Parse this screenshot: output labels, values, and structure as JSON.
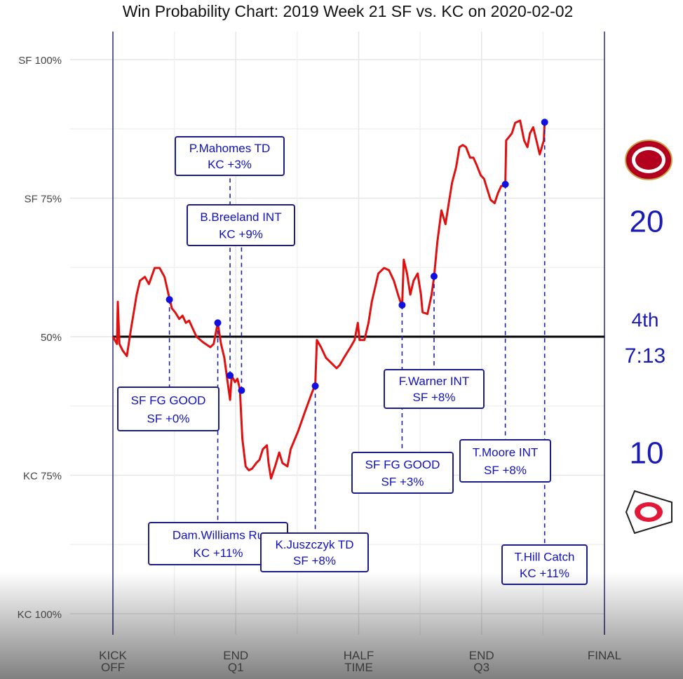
{
  "chart_data": {
    "type": "line",
    "title": "Win Probability Chart: 2019 Week 21 SF vs. KC on 2020-02-02",
    "xlim": [
      0,
      60
    ],
    "xticks": [
      {
        "value": 0,
        "label": "KICK OFF"
      },
      {
        "value": 15,
        "label": "END Q1"
      },
      {
        "value": 30,
        "label": "HALF TIME"
      },
      {
        "value": 45,
        "label": "END Q3"
      },
      {
        "value": 60,
        "label": "FINAL"
      }
    ],
    "ylim": [
      0,
      100
    ],
    "yticks": [
      {
        "value": 100,
        "label": "SF 100%"
      },
      {
        "value": 75,
        "label": "SF 75%"
      },
      {
        "value": 50,
        "label": "50%"
      },
      {
        "value": 25,
        "label": "KC 75%"
      },
      {
        "value": 0,
        "label": "KC 100%"
      }
    ],
    "grid": true,
    "reference_line": 50,
    "color": "#e01010",
    "x": [
      0,
      0.5,
      0.6,
      0.8,
      1.2,
      1.7,
      2.2,
      2.9,
      3.3,
      3.9,
      4.4,
      5.1,
      5.7,
      6.3,
      6.8,
      7.2,
      7.6,
      8.1,
      8.5,
      8.9,
      9.3,
      9.8,
      10.2,
      11.0,
      11.9,
      12.3,
      12.8,
      13.2,
      13.6,
      14.0,
      14.3,
      14.5,
      14.9,
      15.2,
      15.5,
      15.8,
      16.2,
      16.6,
      17.0,
      17.5,
      17.9,
      18.3,
      18.8,
      19.0,
      19.3,
      19.8,
      20.3,
      20.7,
      21.3,
      21.7,
      22.6,
      23.5,
      24.3,
      24.7,
      24.9,
      25.4,
      26.0,
      26.9,
      27.3,
      27.7,
      28.2,
      29.0,
      29.5,
      29.9,
      30.1,
      30.7,
      31.2,
      31.6,
      32.4,
      33.1,
      33.7,
      34.3,
      34.8,
      35.3,
      35.5,
      35.9,
      36.3,
      36.7,
      37.2,
      37.6,
      37.8,
      38.4,
      38.9,
      39.2,
      39.6,
      40.1,
      40.6,
      41.0,
      41.4,
      41.9,
      42.3,
      42.7,
      43.1,
      43.6,
      44.0,
      44.4,
      44.9,
      45.3,
      45.7,
      46.1,
      46.6,
      47.0,
      47.4,
      47.9,
      48.0,
      48.7,
      49.1,
      49.7,
      50.2,
      50.6,
      50.9,
      51.3,
      51.7,
      52.1,
      52.6,
      52.7
    ],
    "values": [
      50,
      48.7,
      56.3,
      48.7,
      47.5,
      46.5,
      51.3,
      57.6,
      60.1,
      60.8,
      59.5,
      62.4,
      62.4,
      60.8,
      57.6,
      55.1,
      54.4,
      53.2,
      53.8,
      52.5,
      52.9,
      51.3,
      50.0,
      49.0,
      48.1,
      48.7,
      52.5,
      48.7,
      46.2,
      41.8,
      38.6,
      43.0,
      41.8,
      42.4,
      40.5,
      31.6,
      26.6,
      25.9,
      26.2,
      27.2,
      27.8,
      29.7,
      30.4,
      27.2,
      24.4,
      26.6,
      29.1,
      27.2,
      26.6,
      29.7,
      32.9,
      36.7,
      39.9,
      41.4,
      49.4,
      48.1,
      46.2,
      44.9,
      44.3,
      44.9,
      46.2,
      48.1,
      49.4,
      52.5,
      49.4,
      49.4,
      52.5,
      56.3,
      61.4,
      62.4,
      62.0,
      60.1,
      57.6,
      55.4,
      63.9,
      61.4,
      57.6,
      60.1,
      61.4,
      57.6,
      54.4,
      54.1,
      57.6,
      60.8,
      67.1,
      72.8,
      70.3,
      74.1,
      77.8,
      80.6,
      84.2,
      84.6,
      84.2,
      82.3,
      82.3,
      81.0,
      79.1,
      78.5,
      76.6,
      74.7,
      74.1,
      75.9,
      77.2,
      77.2,
      85.4,
      86.7,
      88.6,
      89.0,
      85.4,
      84.2,
      86.7,
      87.8,
      85.4,
      82.9,
      85.4,
      88.6
    ],
    "annotations": [
      {
        "label": "P.Mahomes TD",
        "change": "KC +3%",
        "x": 14.3,
        "y": 43.0
      },
      {
        "label": "B.Breeland INT",
        "change": "KC +9%",
        "x": 15.7,
        "y": 40.3
      },
      {
        "label": "SF FG GOOD",
        "change": "SF +0%",
        "x": 6.9,
        "y": 56.7
      },
      {
        "label": "Dam.Williams Ru",
        "change": "KC +11%",
        "x": 12.8,
        "y": 52.5
      },
      {
        "label": "K.Juszczyk TD",
        "change": "SF +8%",
        "x": 24.7,
        "y": 41.1
      },
      {
        "label": "F.Warner INT",
        "change": "SF +8%",
        "x": 39.2,
        "y": 60.9
      },
      {
        "label": "SF FG GOOD",
        "change": "SF +3%",
        "x": 35.3,
        "y": 55.7
      },
      {
        "label": "T.Moore INT",
        "change": "SF +8%",
        "x": 47.9,
        "y": 77.5
      },
      {
        "label": "T.Hill Catch",
        "change": "KC +11%",
        "x": 52.7,
        "y": 88.7
      }
    ],
    "sf_score": 20,
    "quarter": "4th",
    "clock": "7:13",
    "kc_score": 10
  }
}
